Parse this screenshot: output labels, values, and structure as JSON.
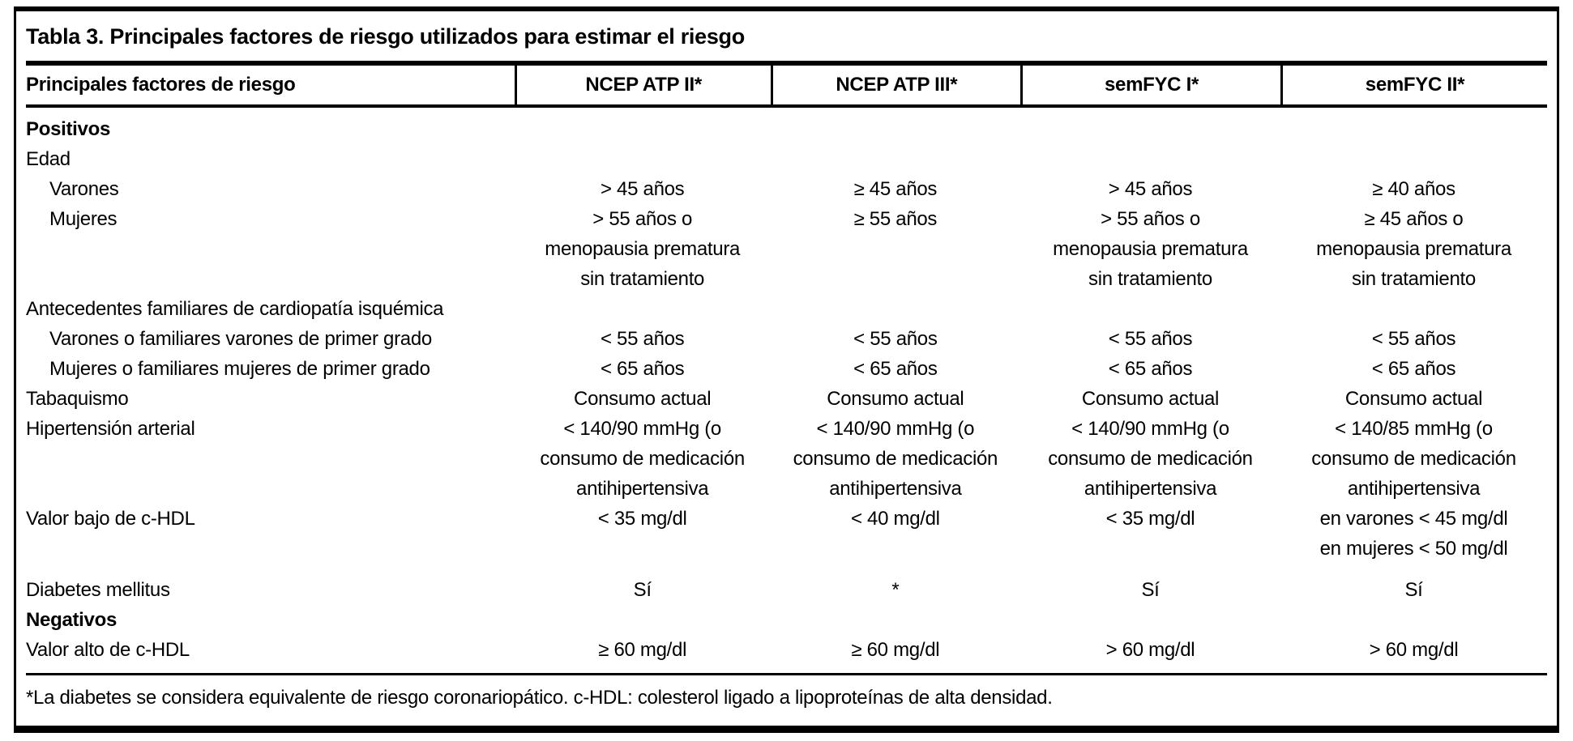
{
  "table": {
    "title": "Tabla 3. Principales factores de riesgo utilizados para estimar el riesgo",
    "columns": [
      "Principales factores de riesgo",
      "NCEP ATP II*",
      "NCEP ATP III*",
      "semFYC I*",
      "semFYC II*"
    ],
    "rows": [
      {
        "label": "Positivos",
        "bold": true,
        "indent": false,
        "values": [
          [],
          [],
          [],
          []
        ]
      },
      {
        "label": "Edad",
        "bold": false,
        "indent": false,
        "values": [
          [],
          [],
          [],
          []
        ]
      },
      {
        "label": "Varones",
        "bold": false,
        "indent": true,
        "values": [
          [
            "> 45 años"
          ],
          [
            "≥ 45 años"
          ],
          [
            "> 45 años"
          ],
          [
            "≥ 40 años"
          ]
        ]
      },
      {
        "label": "Mujeres",
        "bold": false,
        "indent": true,
        "values": [
          [
            "> 55 años o",
            "menopausia prematura",
            "sin tratamiento"
          ],
          [
            "≥ 55 años"
          ],
          [
            "> 55 años o",
            "menopausia prematura",
            "sin tratamiento"
          ],
          [
            "≥ 45 años o",
            "menopausia prematura",
            "sin tratamiento"
          ]
        ]
      },
      {
        "label": "Antecedentes familiares de cardiopatía isquémica",
        "bold": false,
        "indent": false,
        "values": [
          [],
          [],
          [],
          []
        ]
      },
      {
        "label": "Varones o familiares varones de primer grado",
        "bold": false,
        "indent": true,
        "values": [
          [
            "< 55 años"
          ],
          [
            "< 55 años"
          ],
          [
            "< 55 años"
          ],
          [
            "< 55 años"
          ]
        ]
      },
      {
        "label": "Mujeres o familiares mujeres de primer grado",
        "bold": false,
        "indent": true,
        "values": [
          [
            "< 65 años"
          ],
          [
            "< 65 años"
          ],
          [
            "< 65 años"
          ],
          [
            "< 65 años"
          ]
        ]
      },
      {
        "label": "Tabaquismo",
        "bold": false,
        "indent": false,
        "values": [
          [
            "Consumo actual"
          ],
          [
            "Consumo actual"
          ],
          [
            "Consumo actual"
          ],
          [
            "Consumo actual"
          ]
        ]
      },
      {
        "label": "Hipertensión arterial",
        "bold": false,
        "indent": false,
        "values": [
          [
            "< 140/90 mmHg (o",
            "consumo de medicación",
            "antihipertensiva"
          ],
          [
            "< 140/90 mmHg (o",
            "consumo de medicación",
            "antihipertensiva"
          ],
          [
            "< 140/90 mmHg (o",
            "consumo de medicación",
            "antihipertensiva"
          ],
          [
            "< 140/85 mmHg (o",
            "consumo de medicación",
            "antihipertensiva"
          ]
        ]
      },
      {
        "label": "Valor bajo de c-HDL",
        "bold": false,
        "indent": false,
        "spacer_after": true,
        "values": [
          [
            "< 35 mg/dl"
          ],
          [
            "< 40 mg/dl"
          ],
          [
            "< 35 mg/dl"
          ],
          [
            "en varones < 45 mg/dl",
            "en mujeres < 50 mg/dl"
          ]
        ]
      },
      {
        "label": "Diabetes mellitus",
        "bold": false,
        "indent": false,
        "values": [
          [
            "Sí"
          ],
          [
            "*"
          ],
          [
            "Sí"
          ],
          [
            "Sí"
          ]
        ]
      },
      {
        "label": "Negativos",
        "bold": true,
        "indent": false,
        "values": [
          [],
          [],
          [],
          []
        ]
      },
      {
        "label": "Valor alto de c-HDL",
        "bold": false,
        "indent": false,
        "values": [
          [
            "≥ 60 mg/dl"
          ],
          [
            "≥ 60 mg/dl"
          ],
          [
            "> 60 mg/dl"
          ],
          [
            "> 60 mg/dl"
          ]
        ]
      }
    ],
    "footnote": "*La diabetes se considera equivalente de riesgo coronariopático. c-HDL: colesterol ligado a lipoproteínas de alta densidad.",
    "colors": {
      "text": "#000000",
      "background": "#ffffff",
      "rule": "#000000"
    }
  }
}
